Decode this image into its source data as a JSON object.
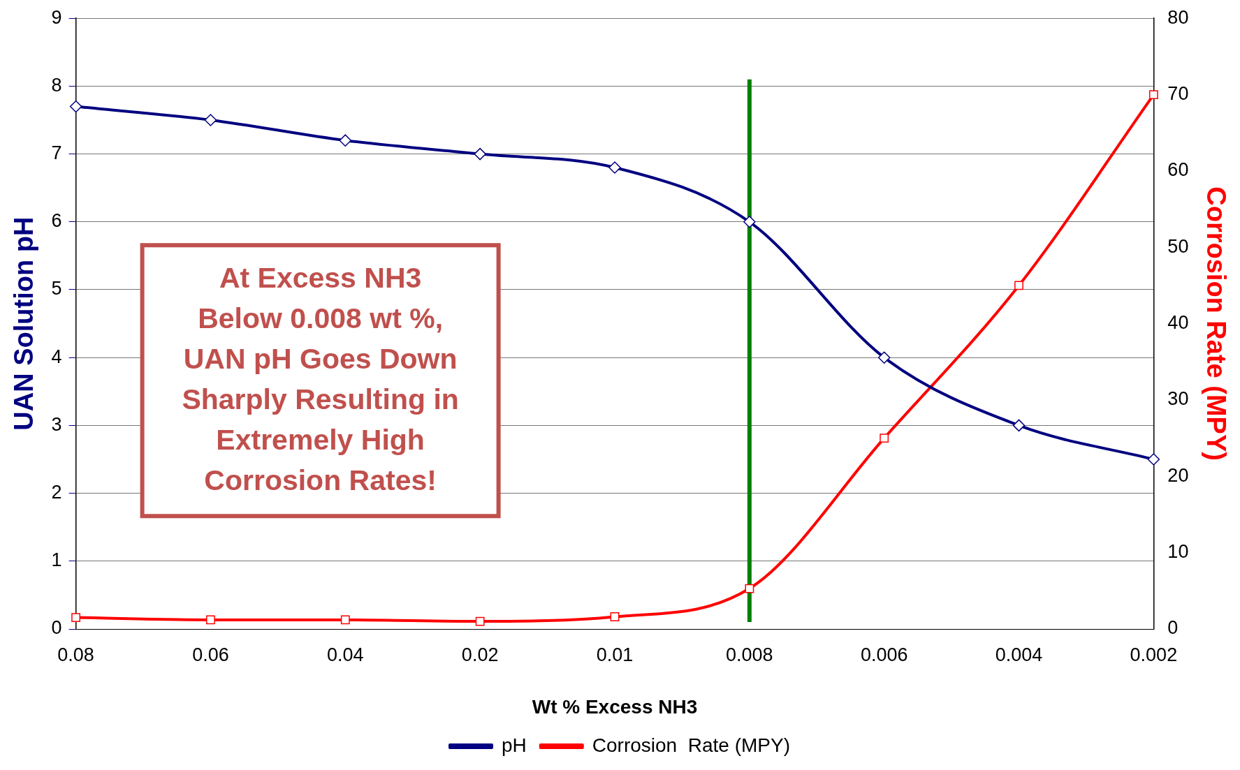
{
  "chart_data": {
    "type": "line",
    "xlabel": "Wt % Excess NH3",
    "ylabel": "UAN Solution pH",
    "y2label": "Corrosion Rate (MPY)",
    "categories": [
      "0.08",
      "0.06",
      "0.04",
      "0.02",
      "0.01",
      "0.008",
      "0.006",
      "0.004",
      "0.002"
    ],
    "series": [
      {
        "name": "pH",
        "color": "#000080",
        "marker": "diamond",
        "values": [
          7.7,
          7.5,
          7.2,
          7.0,
          6.8,
          6.0,
          4.0,
          3.0,
          2.5
        ]
      },
      {
        "name": "Corrosion  Rate (MPY)",
        "color": "#ff0000",
        "marker": "square",
        "axis": "y2",
        "values": [
          1.5,
          1.2,
          1.2,
          1.0,
          1.6,
          5.3,
          25,
          45,
          70
        ]
      }
    ],
    "ylim": [
      0,
      9
    ],
    "yticks": [
      0,
      1,
      2,
      3,
      4,
      5,
      6,
      7,
      8,
      9
    ],
    "y2lim": [
      0,
      80
    ],
    "y2ticks": [
      0,
      10,
      20,
      30,
      40,
      50,
      60,
      70,
      80
    ],
    "ref_lines": [
      {
        "axis": "x",
        "value": "0.008",
        "color": "#008000"
      }
    ],
    "annotations": [
      "At Excess NH3\nBelow 0.008 wt %,\nUAN pH Goes Down\nSharply Resulting in\nExtremely High\nCorrosion Rates!"
    ],
    "grid": "y",
    "legend": "bottom",
    "line_style": "solid"
  }
}
